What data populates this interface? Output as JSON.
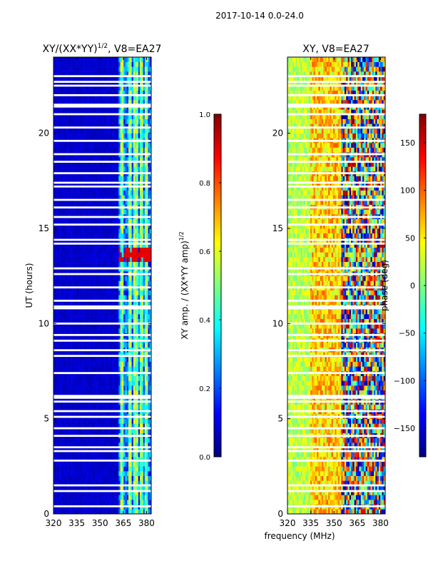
{
  "figure": {
    "suptitle": "2017-10-14 0.0-24.0",
    "shared_xlabel": "frequency (MHz)"
  },
  "colors": {
    "background": "#ffffff",
    "flag_gap": "#ffffff",
    "jet_stops": [
      "#000080",
      "#0000ff",
      "#00ffff",
      "#ffff00",
      "#ff0000",
      "#800000"
    ]
  },
  "chart_data": [
    {
      "type": "heatmap",
      "title": "XY/(XX*YY)",
      "title_superscript": "1/2",
      "title_suffix": ", V8=EA27",
      "xlabel": "",
      "ylabel": "UT (hours)",
      "xlim": [
        320,
        383
      ],
      "ylim": [
        0,
        24
      ],
      "xticks": [
        "320",
        "335",
        "350",
        "365",
        "380"
      ],
      "yticks": [
        "0",
        "5",
        "10",
        "15",
        "20"
      ],
      "colorbar": {
        "label": "XY amp. / (XX*YY amp)",
        "label_superscript": "1/2",
        "range": [
          0.0,
          1.0
        ],
        "ticks": [
          "0.0",
          "0.2",
          "0.4",
          "0.6",
          "0.8",
          "1.0"
        ]
      },
      "approx_cell_values": {
        "background_320_360MHz": 0.05,
        "band_362_383MHz": 0.35,
        "bright_stripes_MHz": [
          364,
          369,
          373,
          377,
          380
        ],
        "peak_13.7h": 0.9
      },
      "flagged_hours": [
        0.4,
        1.2,
        1.5,
        2.8,
        3.3,
        3.5,
        4.1,
        4.5,
        5.1,
        5.4,
        5.9,
        6.1,
        6.2,
        7.4,
        8.3,
        8.6,
        9.1,
        9.4,
        10.0,
        10.8,
        10.9,
        11.2,
        11.9,
        12.6,
        12.9,
        14.2,
        14.4,
        15.2,
        15.6,
        16.1,
        16.5,
        17.2,
        17.4,
        17.9,
        18.5,
        18.9,
        19.6,
        20.3,
        21.0,
        21.4,
        21.5,
        22.0,
        22.5,
        22.7,
        23.0
      ]
    },
    {
      "type": "heatmap",
      "title": "XY, V8=EA27",
      "xlabel": "frequency (MHz)",
      "ylabel": "",
      "xlim": [
        320,
        383
      ],
      "ylim": [
        0,
        24
      ],
      "xticks": [
        "320",
        "335",
        "350",
        "365",
        "380"
      ],
      "yticks": [
        "0",
        "5",
        "10",
        "15",
        "20"
      ],
      "colorbar": {
        "label": "phase (deg)",
        "range": [
          -180,
          180
        ],
        "ticks": [
          "−150",
          "−100",
          "−50",
          "0",
          "50",
          "100",
          "150"
        ]
      },
      "approx_cell_values": {
        "phase_320_335MHz_deg": 20,
        "phase_335_355MHz_deg": 60,
        "phase_355_383MHz": "mixed, strongly varying"
      },
      "flagged_hours": [
        0.4,
        1.2,
        1.5,
        2.8,
        3.3,
        3.5,
        4.1,
        4.5,
        5.1,
        5.4,
        5.9,
        6.1,
        6.2,
        7.4,
        8.3,
        8.6,
        9.1,
        9.4,
        10.0,
        10.8,
        10.9,
        11.2,
        11.9,
        12.6,
        12.9,
        14.2,
        14.4,
        15.2,
        15.6,
        16.1,
        16.5,
        17.2,
        17.4,
        17.9,
        18.5,
        18.9,
        19.6,
        20.3,
        21.0,
        21.4,
        21.5,
        22.0,
        22.5,
        22.7,
        23.0
      ]
    }
  ]
}
